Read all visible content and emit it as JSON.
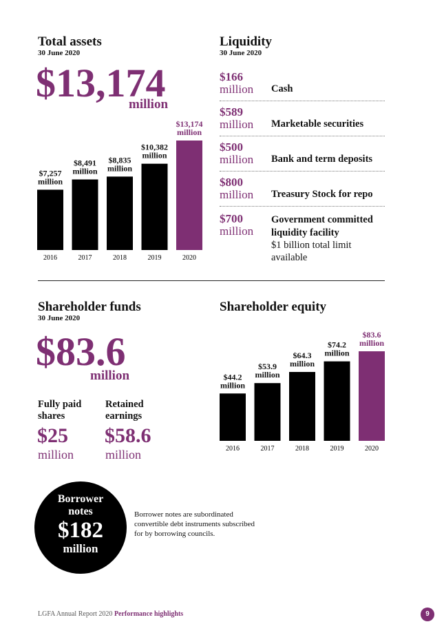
{
  "total_assets": {
    "title": "Total assets",
    "date": "30 June 2020",
    "headline": "$13,174",
    "headline_unit": "million"
  },
  "liquidity": {
    "title": "Liquidity",
    "date": "30 June 2020",
    "items": [
      {
        "amount": "$166",
        "unit": "million",
        "label": "Cash"
      },
      {
        "amount": "$589",
        "unit": "million",
        "label": "Marketable securities"
      },
      {
        "amount": "$500",
        "unit": "million",
        "label": "Bank and term deposits"
      },
      {
        "amount": "$800",
        "unit": "million",
        "label": "Treasury Stock for repo"
      },
      {
        "amount": "$700",
        "unit": "million",
        "label": "Government committed liquidity facility",
        "note": "$1 billion total limit available"
      }
    ]
  },
  "shareholder_funds": {
    "title": "Shareholder funds",
    "date": "30 June 2020",
    "headline": "$83.6",
    "headline_unit": "million",
    "parts": [
      {
        "label": "Fully paid shares",
        "amount": "$25",
        "unit": "million"
      },
      {
        "label": "Retained earnings",
        "amount": "$58.6",
        "unit": "million"
      }
    ]
  },
  "shareholder_equity": {
    "title": "Shareholder equity"
  },
  "borrower_notes": {
    "title": "Borrower notes",
    "amount": "$182",
    "unit": "million",
    "description": "Borrower notes are subordinated convertible debt instruments subscribed for by borrowing councils."
  },
  "footer": {
    "report": "LGFA Annual Report 2020",
    "section": "Performance highlights",
    "page": "9"
  },
  "chart_data": [
    {
      "type": "bar",
      "categories": [
        "2016",
        "2017",
        "2018",
        "2019",
        "2020"
      ],
      "values": [
        7257,
        8491,
        8835,
        10382,
        13174
      ],
      "value_labels": [
        "$7,257 million",
        "$8,491 million",
        "$8,835 million",
        "$10,382 million",
        "$13,174 million"
      ],
      "colors": [
        "#000000",
        "#000000",
        "#000000",
        "#000000",
        "#7e2f73"
      ]
    },
    {
      "type": "bar",
      "categories": [
        "2016",
        "2017",
        "2018",
        "2019",
        "2020"
      ],
      "values": [
        44.2,
        53.9,
        64.3,
        74.2,
        83.6
      ],
      "value_labels": [
        "$44.2 million",
        "$53.9 million",
        "$64.3 million",
        "$74.2 million",
        "$83.6 million"
      ],
      "colors": [
        "#000000",
        "#000000",
        "#000000",
        "#000000",
        "#7e2f73"
      ]
    }
  ]
}
